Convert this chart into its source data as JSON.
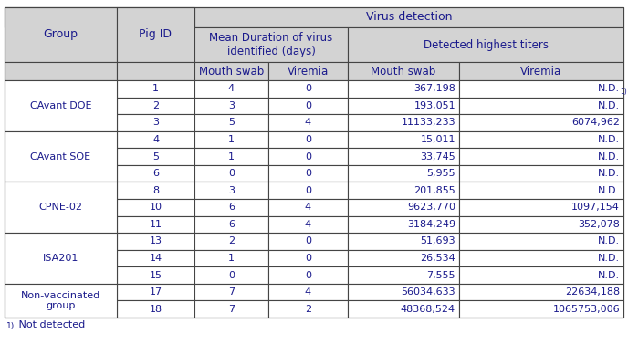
{
  "header_bg": "#d3d3d3",
  "footnote": "Not detected",
  "rows": [
    {
      "group": "CAvant DOE",
      "pig_id": "1",
      "ms_dur": "4",
      "vir_dur": "0",
      "ms_titer": "367,198",
      "vir_titer": "N.D.",
      "vir_titer_sup": true
    },
    {
      "group": "",
      "pig_id": "2",
      "ms_dur": "3",
      "vir_dur": "0",
      "ms_titer": "193,051",
      "vir_titer": "N.D.",
      "vir_titer_sup": false
    },
    {
      "group": "",
      "pig_id": "3",
      "ms_dur": "5",
      "vir_dur": "4",
      "ms_titer": "11133,233",
      "vir_titer": "6074,962",
      "vir_titer_sup": false
    },
    {
      "group": "CAvant SOE",
      "pig_id": "4",
      "ms_dur": "1",
      "vir_dur": "0",
      "ms_titer": "15,011",
      "vir_titer": "N.D.",
      "vir_titer_sup": false
    },
    {
      "group": "",
      "pig_id": "5",
      "ms_dur": "1",
      "vir_dur": "0",
      "ms_titer": "33,745",
      "vir_titer": "N.D.",
      "vir_titer_sup": false
    },
    {
      "group": "",
      "pig_id": "6",
      "ms_dur": "0",
      "vir_dur": "0",
      "ms_titer": "5,955",
      "vir_titer": "N.D.",
      "vir_titer_sup": false
    },
    {
      "group": "CPNE-02",
      "pig_id": "8",
      "ms_dur": "3",
      "vir_dur": "0",
      "ms_titer": "201,855",
      "vir_titer": "N.D.",
      "vir_titer_sup": false
    },
    {
      "group": "",
      "pig_id": "10",
      "ms_dur": "6",
      "vir_dur": "4",
      "ms_titer": "9623,770",
      "vir_titer": "1097,154",
      "vir_titer_sup": false
    },
    {
      "group": "",
      "pig_id": "11",
      "ms_dur": "6",
      "vir_dur": "4",
      "ms_titer": "3184,249",
      "vir_titer": "352,078",
      "vir_titer_sup": false
    },
    {
      "group": "ISA201",
      "pig_id": "13",
      "ms_dur": "2",
      "vir_dur": "0",
      "ms_titer": "51,693",
      "vir_titer": "N.D.",
      "vir_titer_sup": false
    },
    {
      "group": "",
      "pig_id": "14",
      "ms_dur": "1",
      "vir_dur": "0",
      "ms_titer": "26,534",
      "vir_titer": "N.D.",
      "vir_titer_sup": false
    },
    {
      "group": "",
      "pig_id": "15",
      "ms_dur": "0",
      "vir_dur": "0",
      "ms_titer": "7,555",
      "vir_titer": "N.D.",
      "vir_titer_sup": false
    },
    {
      "group": "Non-vaccinated\ngroup",
      "pig_id": "17",
      "ms_dur": "7",
      "vir_dur": "4",
      "ms_titer": "56034,633",
      "vir_titer": "22634,188",
      "vir_titer_sup": false
    },
    {
      "group": "",
      "pig_id": "18",
      "ms_dur": "7",
      "vir_dur": "2",
      "ms_titer": "48368,524",
      "vir_titer": "1065753,006",
      "vir_titer_sup": false
    }
  ],
  "group_spans": [
    {
      "group": "CAvant DOE",
      "start": 0,
      "end": 2
    },
    {
      "group": "CAvant SOE",
      "start": 3,
      "end": 5
    },
    {
      "group": "CPNE-02",
      "start": 6,
      "end": 8
    },
    {
      "group": "ISA201",
      "start": 9,
      "end": 11
    },
    {
      "group": "Non-vaccinated\ngroup",
      "start": 12,
      "end": 13
    }
  ]
}
